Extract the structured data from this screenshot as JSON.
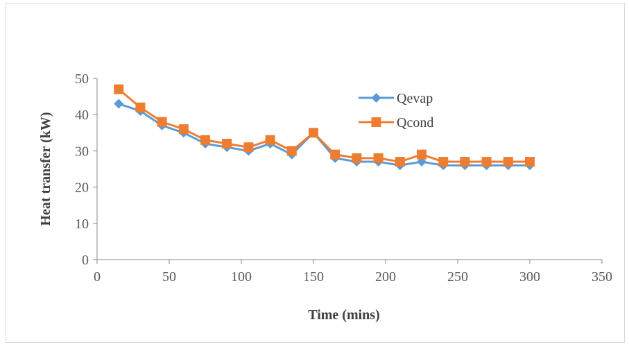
{
  "chart_data": {
    "type": "line",
    "xlabel": "Time (mins)",
    "ylabel": "Heat transfer (kW)",
    "xlim": [
      0,
      350
    ],
    "ylim": [
      0,
      50
    ],
    "xticks": [
      0,
      50,
      100,
      150,
      200,
      250,
      300,
      350
    ],
    "yticks": [
      0,
      10,
      20,
      30,
      40,
      50
    ],
    "grid": false,
    "legend_position": "top-right",
    "x": [
      15,
      30,
      45,
      60,
      75,
      90,
      105,
      120,
      135,
      150,
      165,
      180,
      195,
      210,
      225,
      240,
      255,
      270,
      285,
      300
    ],
    "series": [
      {
        "name": "Qevap",
        "color": "#5b9bd5",
        "marker": "diamond",
        "values": [
          43,
          41,
          37,
          35,
          32,
          31,
          30,
          32,
          29,
          35,
          28,
          27,
          27,
          26,
          27,
          26,
          26,
          26,
          26,
          26
        ]
      },
      {
        "name": "Qcond",
        "color": "#ed7d31",
        "marker": "square",
        "values": [
          47,
          42,
          38,
          36,
          33,
          32,
          31,
          33,
          30,
          35,
          29,
          28,
          28,
          27,
          29,
          27,
          27,
          27,
          27,
          27
        ]
      }
    ]
  }
}
